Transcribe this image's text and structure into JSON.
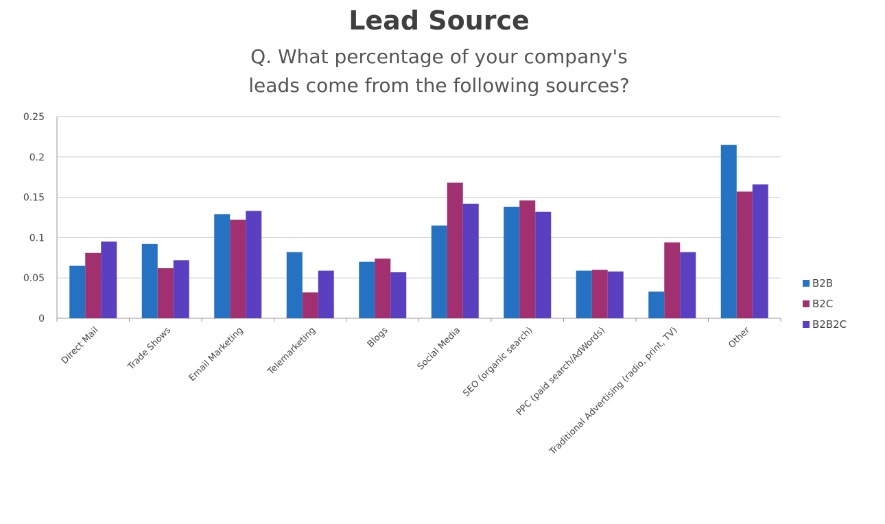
{
  "chart_data": {
    "type": "bar",
    "title": "Lead Source",
    "subtitle": "Q. What percentage of your company's leads come from the following sources?",
    "xlabel": "",
    "ylabel": "",
    "ylim": [
      0,
      0.25
    ],
    "yticks": [
      "0",
      "0.05",
      "0.1",
      "0.15",
      "0.2",
      "0.25"
    ],
    "grid": true,
    "legend": "right",
    "categories": [
      "Direct Mail",
      "Trade Shows",
      "Email Marketing",
      "Telemarketing",
      "Blogs",
      "Social Media",
      "SEO (organic search)",
      "PPC (paid search/AdWords)",
      "Traditional Advertising (radio, print, TV)",
      "Other"
    ],
    "series": [
      {
        "name": "B2B",
        "color": "#2472C1",
        "values": [
          0.065,
          0.092,
          0.129,
          0.082,
          0.07,
          0.115,
          0.138,
          0.059,
          0.033,
          0.215
        ]
      },
      {
        "name": "B2C",
        "color": "#A0306F",
        "values": [
          0.081,
          0.062,
          0.122,
          0.032,
          0.074,
          0.168,
          0.146,
          0.06,
          0.094,
          0.157
        ]
      },
      {
        "name": "B2B2C",
        "color": "#5A40C0",
        "values": [
          0.095,
          0.072,
          0.133,
          0.059,
          0.057,
          0.142,
          0.132,
          0.058,
          0.082,
          0.166
        ]
      }
    ]
  }
}
